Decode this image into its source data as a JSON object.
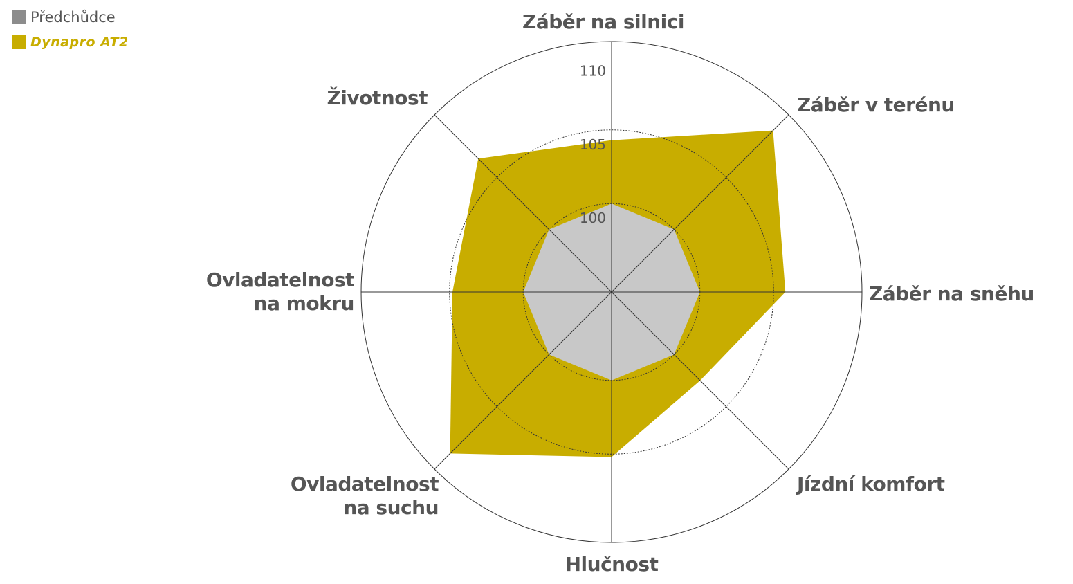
{
  "legend": [
    {
      "label": "Předchůdce",
      "color": "#8c8c8c"
    },
    {
      "label": "Dynapro AT2",
      "color": "#c8ad00"
    }
  ],
  "chart_data": {
    "type": "radar",
    "axes": [
      "Záběr na silnici",
      "Záběr v terénu",
      "Záběr na sněhu",
      "Jízdní komfort",
      "Hlučnost",
      "Ovladatelnost na suchu",
      "Ovladatelnost na mokru",
      "Životnost"
    ],
    "axis_label_lines": [
      [
        "Záběr na silnici"
      ],
      [
        "Záběr v terénu"
      ],
      [
        "Záběr na sněhu"
      ],
      [
        "Jízdní komfort"
      ],
      [
        "Hlučnost"
      ],
      [
        "Ovladatelnost",
        "na suchu"
      ],
      [
        "Ovladatelnost",
        "na mokru"
      ],
      [
        "Životnost"
      ]
    ],
    "series": [
      {
        "name": "Předchůdce",
        "color": "#c8c8c8",
        "values": [
          100,
          100,
          100,
          100,
          100,
          100,
          100,
          100
        ]
      },
      {
        "name": "Dynapro AT2",
        "color": "#c8ad00",
        "values": [
          104.3,
          109.5,
          105.8,
          102.5,
          105.2,
          109.5,
          104.8,
          106.8
        ]
      }
    ],
    "radial_ticks": [
      100,
      105,
      110
    ],
    "range": [
      94,
      111
    ],
    "reference_circles": [
      100,
      105
    ],
    "grid": true,
    "legend_position": "top-left"
  }
}
